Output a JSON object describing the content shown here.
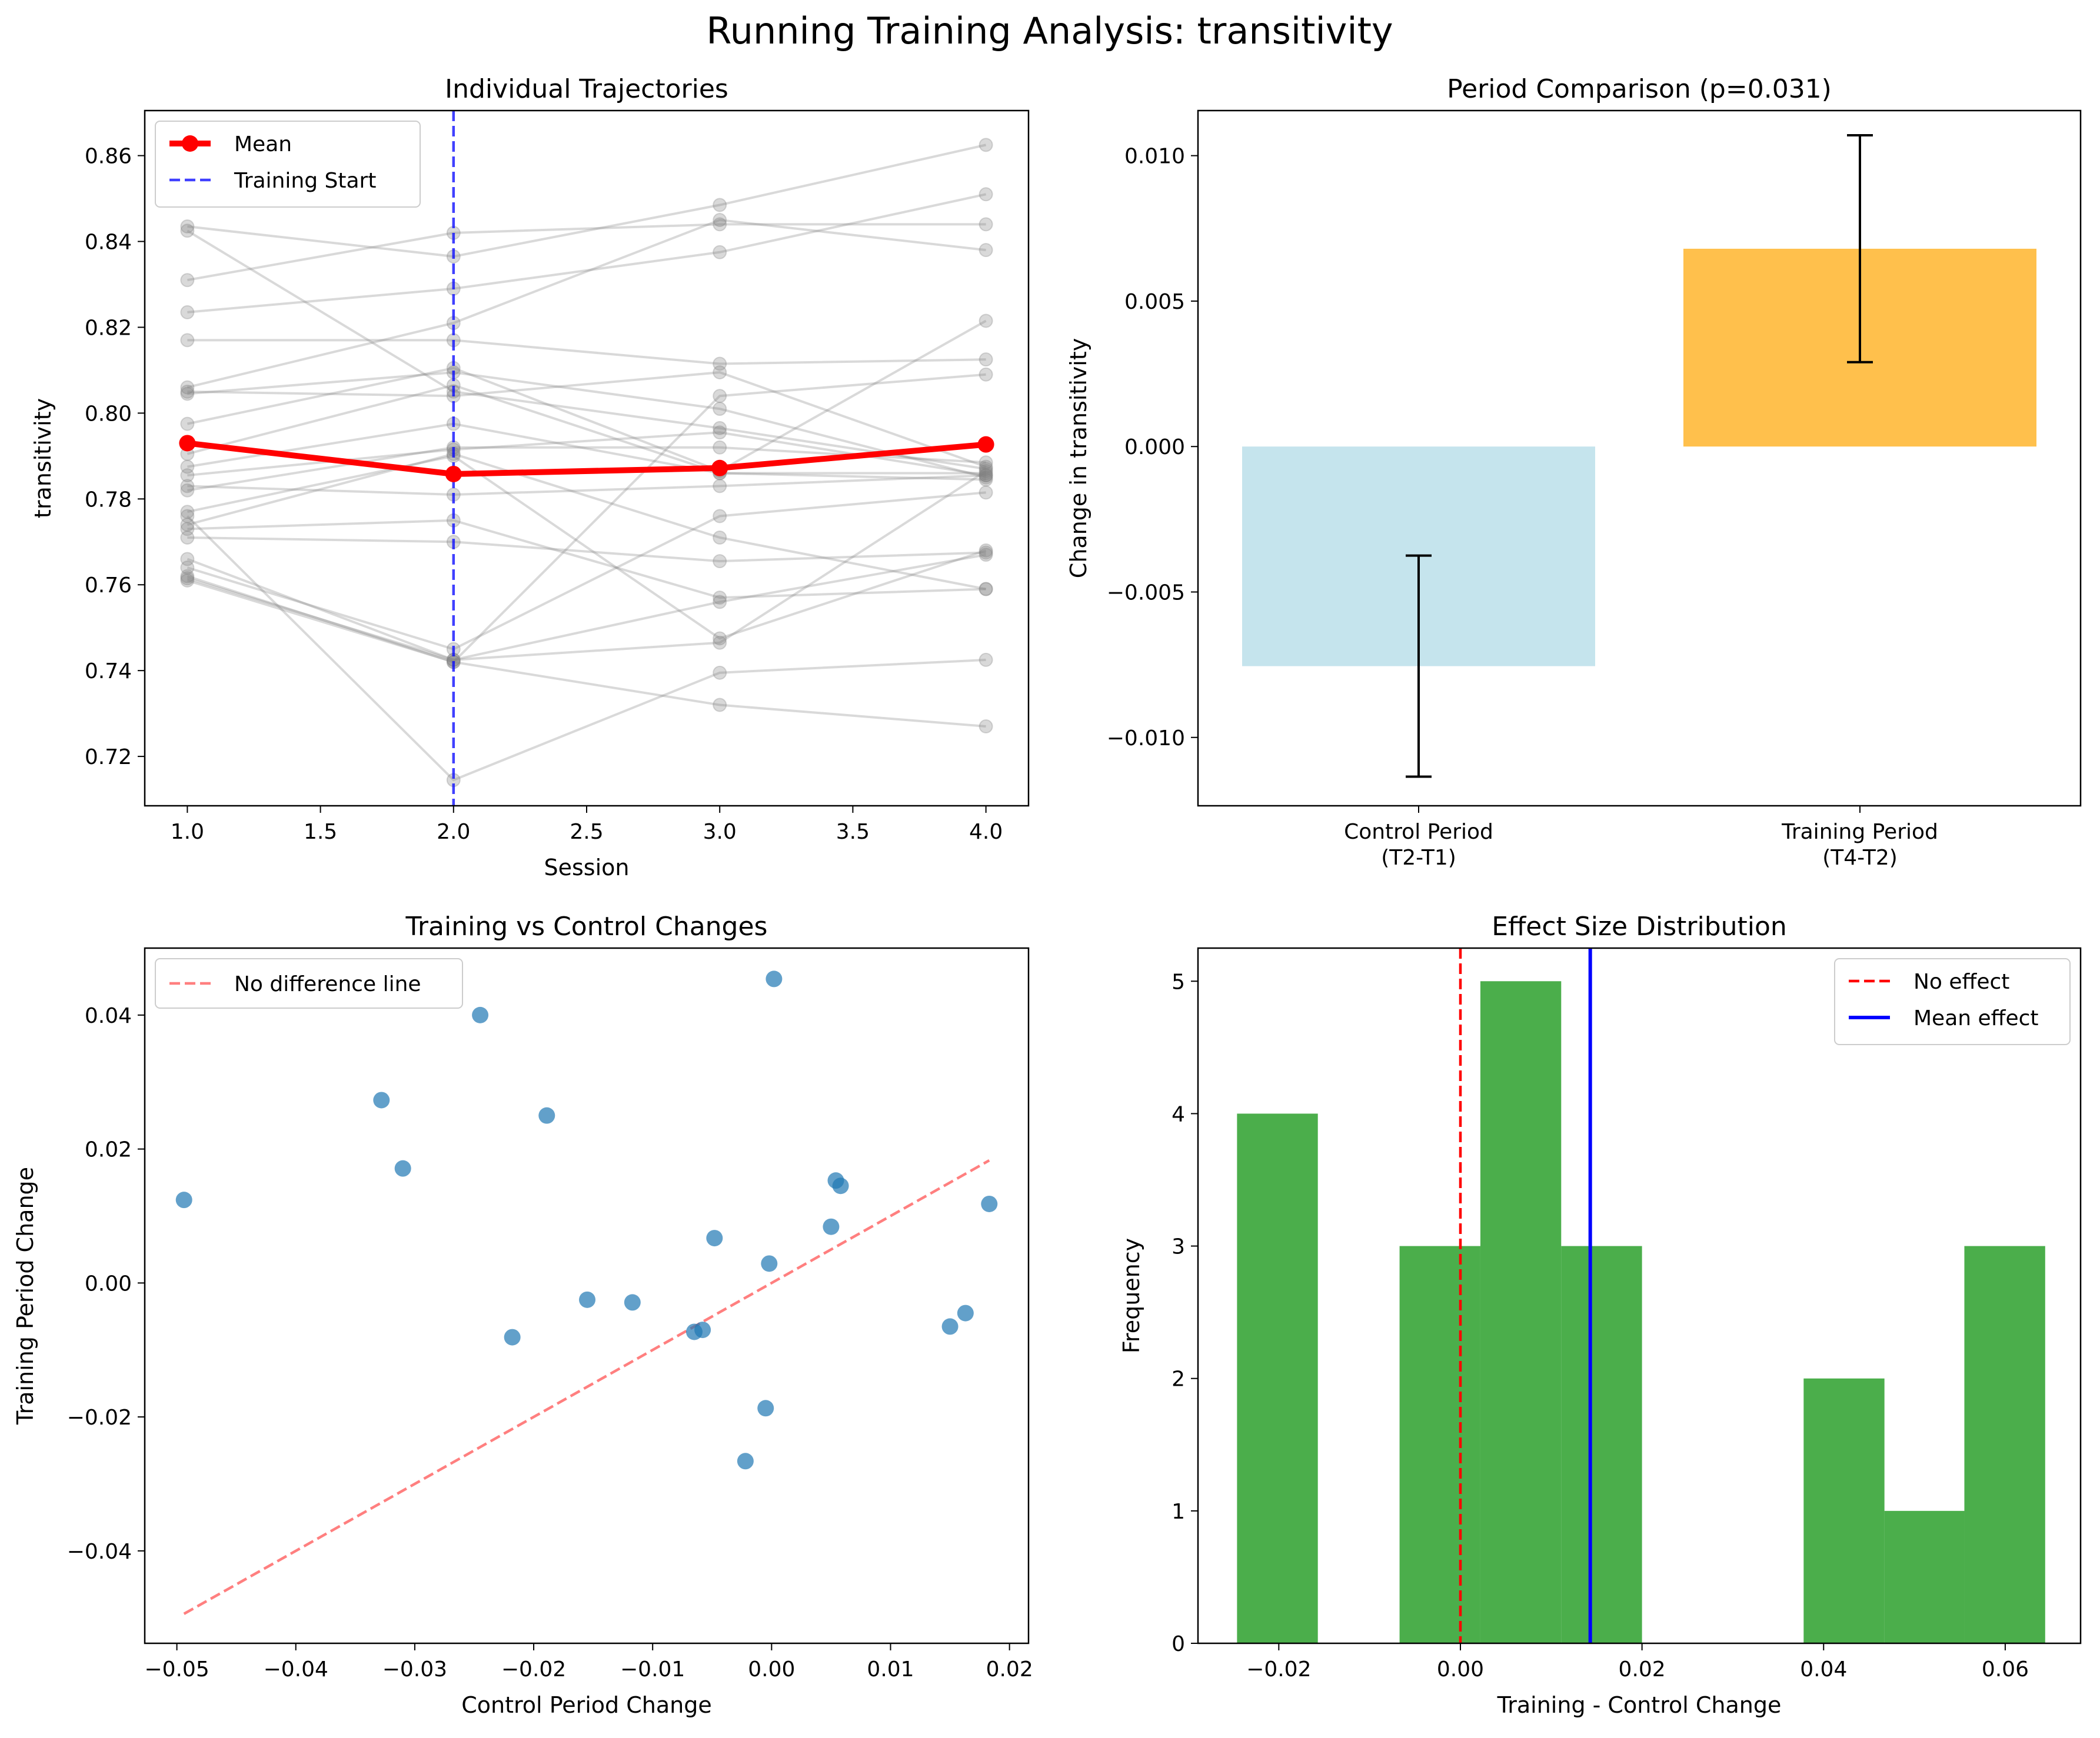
{
  "suptitle": "Running Training Analysis: transitivity",
  "chart_data": [
    {
      "type": "line",
      "title": "Individual Trajectories",
      "xlabel": "Session",
      "ylabel": "transitivity",
      "xlim": [
        0.84,
        4.16
      ],
      "ylim": [
        0.7085,
        0.8705
      ],
      "xticks": [
        1.0,
        1.5,
        2.0,
        2.5,
        3.0,
        3.5,
        4.0
      ],
      "yticks": [
        0.72,
        0.74,
        0.76,
        0.78,
        0.8,
        0.82,
        0.84,
        0.86
      ],
      "x": [
        1,
        2,
        3,
        4
      ],
      "individuals": [
        [
          0.8435,
          0.8365,
          0.8485,
          0.8625
        ],
        [
          0.8425,
          0.805,
          0.7965,
          0.787
        ],
        [
          0.831,
          0.842,
          0.844,
          0.844
        ],
        [
          0.8235,
          0.829,
          0.8375,
          0.851
        ],
        [
          0.817,
          0.817,
          0.8115,
          0.8125
        ],
        [
          0.806,
          0.821,
          0.845,
          0.838
        ],
        [
          0.8045,
          0.8095,
          0.801,
          0.785
        ],
        [
          0.805,
          0.804,
          0.8095,
          0.7875
        ],
        [
          0.7975,
          0.8105,
          0.7865,
          0.8215
        ],
        [
          0.7905,
          0.8065,
          0.786,
          0.786
        ],
        [
          0.7875,
          0.7975,
          0.786,
          0.7845
        ],
        [
          0.7855,
          0.7915,
          0.7955,
          0.7855
        ],
        [
          0.783,
          0.781,
          0.783,
          0.7855
        ],
        [
          0.782,
          0.792,
          0.792,
          0.7885
        ],
        [
          0.777,
          0.79,
          0.7475,
          0.768
        ],
        [
          0.774,
          0.7905,
          0.771,
          0.759
        ],
        [
          0.773,
          0.775,
          0.757,
          0.759
        ],
        [
          0.771,
          0.77,
          0.7655,
          0.7675
        ],
        [
          0.766,
          0.7425,
          0.756,
          0.767
        ],
        [
          0.764,
          0.745,
          0.776,
          0.7815
        ],
        [
          0.762,
          0.742,
          0.732,
          0.727
        ],
        [
          0.7615,
          0.7425,
          0.7465,
          0.7865
        ],
        [
          0.776,
          0.7145,
          0.7395,
          0.7425
        ],
        [
          0.761,
          0.742,
          0.804,
          0.809
        ]
      ],
      "mean": [
        0.793,
        0.7858,
        0.7872,
        0.7927
      ],
      "training_start": 2.0,
      "legend": [
        "Mean",
        "Training Start"
      ],
      "legend_position": "upper left",
      "colors": {
        "individual": "#808080",
        "mean": "#ff0000",
        "training": "#0000ff"
      }
    },
    {
      "type": "bar",
      "title": "Period Comparison (p=0.031)",
      "ylabel": "Change in transitivity",
      "ylim": [
        -0.01235,
        0.01155
      ],
      "yticks": [
        -0.01,
        -0.005,
        0.0,
        0.005,
        0.01
      ],
      "categories": [
        [
          "Control Period",
          "(T2-T1)"
        ],
        [
          "Training Period",
          "(T4-T2)"
        ]
      ],
      "values": [
        -0.00755,
        0.0068
      ],
      "errors": [
        0.0038,
        0.0039
      ],
      "colors": [
        "#add8e6",
        "#ffa500"
      ]
    },
    {
      "type": "scatter",
      "title": "Training vs Control Changes",
      "xlabel": "Control Period Change",
      "ylabel": "Training Period Change",
      "xlim": [
        -0.0527,
        0.0216
      ],
      "ylim": [
        -0.0538,
        0.05
      ],
      "xticks": [
        -0.05,
        -0.04,
        -0.03,
        -0.02,
        -0.01,
        0.0,
        0.01,
        0.02
      ],
      "yticks": [
        -0.04,
        -0.02,
        0.0,
        0.02,
        0.04
      ],
      "points": [
        [
          -0.0494,
          0.0124
        ],
        [
          -0.0328,
          0.0273
        ],
        [
          -0.031,
          0.0171
        ],
        [
          -0.0245,
          0.04
        ],
        [
          -0.0189,
          0.025
        ],
        [
          -0.0218,
          -0.0081
        ],
        [
          -0.0155,
          -0.0025
        ],
        [
          -0.0117,
          -0.0029
        ],
        [
          -0.0065,
          -0.0073
        ],
        [
          -0.0058,
          -0.007
        ],
        [
          -0.0048,
          0.0067
        ],
        [
          -0.0022,
          -0.0266
        ],
        [
          -0.0005,
          -0.0187
        ],
        [
          -0.0002,
          0.0029
        ],
        [
          0.0002,
          0.0454
        ],
        [
          0.005,
          0.0084
        ],
        [
          0.0054,
          0.0153
        ],
        [
          0.0058,
          0.0145
        ],
        [
          0.015,
          -0.0065
        ],
        [
          0.0163,
          -0.0045
        ],
        [
          0.0183,
          0.0118
        ]
      ],
      "reference_line": [
        [
          -0.0494,
          -0.0494
        ],
        [
          0.0183,
          0.0183
        ]
      ],
      "legend": [
        "No difference line"
      ],
      "legend_position": "upper left",
      "colors": {
        "points": "#1f77b4",
        "reference": "#ff7f7f"
      }
    },
    {
      "type": "histogram",
      "title": "Effect Size Distribution",
      "xlabel": "Training - Control Change",
      "ylabel": "Frequency",
      "xlim": [
        -0.0289,
        0.0683
      ],
      "ylim": [
        0,
        5.25
      ],
      "xticks": [
        -0.02,
        0.0,
        0.02,
        0.04,
        0.06
      ],
      "yticks": [
        0,
        1,
        2,
        3,
        4,
        5
      ],
      "bin_edges": [
        -0.0246,
        -0.0157,
        -0.0067,
        0.0022,
        0.0111,
        0.02,
        0.0289,
        0.0378,
        0.0467,
        0.0555,
        0.0644
      ],
      "counts": [
        4,
        0,
        3,
        5,
        3,
        0,
        0,
        2,
        1,
        3
      ],
      "no_effect": 0.0,
      "mean_effect": 0.0143,
      "legend": [
        "No effect",
        "Mean effect"
      ],
      "legend_position": "upper right",
      "colors": {
        "bars": "#2ca02c",
        "no_effect": "#ff0000",
        "mean_effect": "#0000ff"
      }
    }
  ]
}
